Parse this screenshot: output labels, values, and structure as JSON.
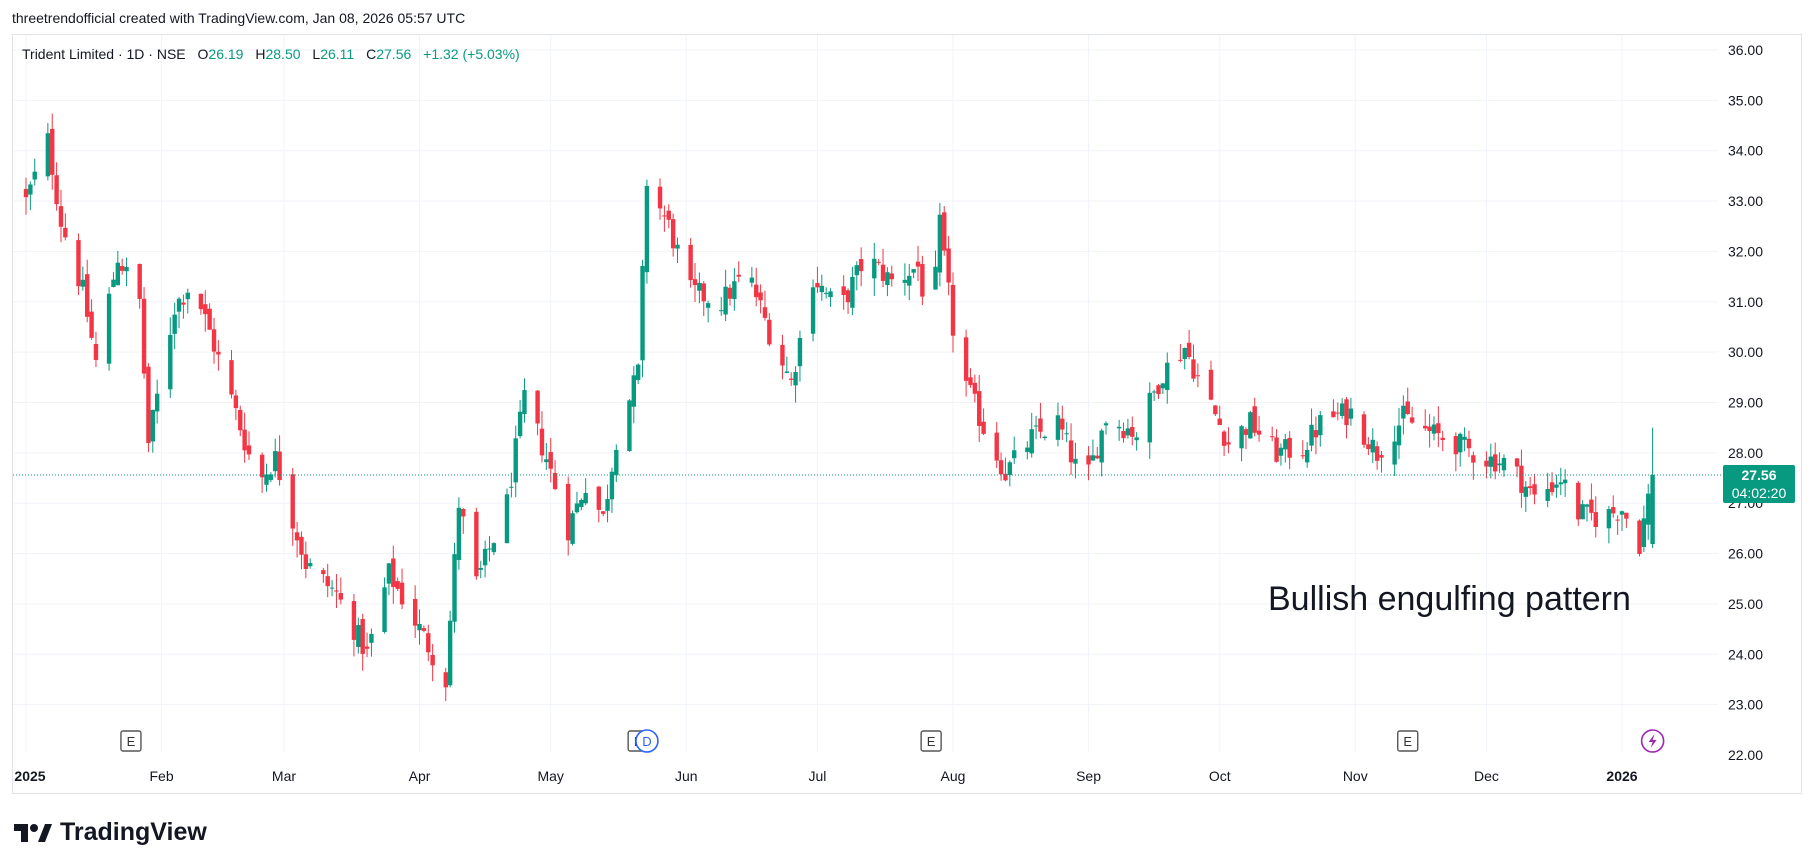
{
  "header": {
    "credit": "threetrendofficial created with TradingView.com, Jan 08, 2026 05:57 UTC"
  },
  "legend": {
    "symbol": "Trident Limited · 1D · NSE",
    "o_label": "O",
    "o_value": "26.19",
    "h_label": "H",
    "h_value": "28.50",
    "l_label": "L",
    "l_value": "26.11",
    "c_label": "C",
    "c_value": "27.56",
    "change": "+1.32 (+5.03%)"
  },
  "annotation": "Bullish engulfing pattern",
  "price_tag": {
    "price": "27.56",
    "countdown": "04:02:20"
  },
  "markers": [
    {
      "letter": "E",
      "date": "2025-01-25",
      "kind": "earnings"
    },
    {
      "letter": "E",
      "date": "2025-05-21",
      "kind": "earnings"
    },
    {
      "letter": "D",
      "date": "2025-05-23",
      "kind": "dividend"
    },
    {
      "letter": "E",
      "date": "2025-07-27",
      "kind": "earnings"
    },
    {
      "letter": "E",
      "date": "2025-11-13",
      "kind": "earnings"
    },
    {
      "letter": "",
      "date": "2026-01-08",
      "kind": "flash-icon"
    }
  ],
  "brand": "TradingView",
  "colors": {
    "up": "#089981",
    "down": "#f23645",
    "grid": "#f0f3fa",
    "text": "#131722",
    "accent": "#2962ff",
    "purple": "#9c27b0"
  },
  "chart_data": {
    "type": "candlestick",
    "title": "",
    "xlabel": "",
    "ylabel": "",
    "ylim": [
      22.0,
      36.0
    ],
    "yticks": [
      "36.00",
      "35.00",
      "34.00",
      "33.00",
      "32.00",
      "31.00",
      "30.00",
      "29.00",
      "28.00",
      "27.00",
      "26.00",
      "25.00",
      "24.00",
      "23.00",
      "22.00"
    ],
    "xticks": [
      {
        "label": "2025",
        "date": "2025-01-01",
        "bold": true
      },
      {
        "label": "Feb",
        "date": "2025-02-01"
      },
      {
        "label": "Mar",
        "date": "2025-03-01"
      },
      {
        "label": "Apr",
        "date": "2025-04-01"
      },
      {
        "label": "May",
        "date": "2025-05-01"
      },
      {
        "label": "Jun",
        "date": "2025-06-01"
      },
      {
        "label": "Jul",
        "date": "2025-07-01"
      },
      {
        "label": "Aug",
        "date": "2025-08-01"
      },
      {
        "label": "Sep",
        "date": "2025-09-01"
      },
      {
        "label": "Oct",
        "date": "2025-10-01"
      },
      {
        "label": "Nov",
        "date": "2025-11-01"
      },
      {
        "label": "Dec",
        "date": "2025-12-01"
      },
      {
        "label": "2026",
        "date": "2026-01-01",
        "bold": true
      }
    ],
    "last_price": 27.56,
    "close_path": [
      [
        "2025-01-01",
        33.0
      ],
      [
        "2025-01-06",
        34.2
      ],
      [
        "2025-01-09",
        32.6
      ],
      [
        "2025-01-14",
        31.2
      ],
      [
        "2025-01-17",
        29.8
      ],
      [
        "2025-01-22",
        31.9
      ],
      [
        "2025-01-27",
        31.0
      ],
      [
        "2025-01-29",
        28.2
      ],
      [
        "2025-02-04",
        30.9
      ],
      [
        "2025-02-08",
        31.4
      ],
      [
        "2025-02-12",
        30.4
      ],
      [
        "2025-02-18",
        28.8
      ],
      [
        "2025-02-23",
        27.4
      ],
      [
        "2025-02-27",
        27.9
      ],
      [
        "2025-03-06",
        25.8
      ],
      [
        "2025-03-13",
        25.2
      ],
      [
        "2025-03-20",
        24.0
      ],
      [
        "2025-03-25",
        25.6
      ],
      [
        "2025-04-01",
        24.5
      ],
      [
        "2025-04-04",
        24.0
      ],
      [
        "2025-04-07",
        23.5
      ],
      [
        "2025-04-10",
        27.0
      ],
      [
        "2025-04-14",
        25.4
      ],
      [
        "2025-04-21",
        27.0
      ],
      [
        "2025-04-25",
        29.1
      ],
      [
        "2025-04-30",
        27.9
      ],
      [
        "2025-05-05",
        26.5
      ],
      [
        "2025-05-09",
        27.4
      ],
      [
        "2025-05-13",
        26.7
      ],
      [
        "2025-05-16",
        28.3
      ],
      [
        "2025-05-21",
        29.6
      ],
      [
        "2025-05-23",
        33.4
      ],
      [
        "2025-05-28",
        32.5
      ],
      [
        "2025-06-02",
        31.2
      ],
      [
        "2025-06-09",
        31.0
      ],
      [
        "2025-06-15",
        31.6
      ],
      [
        "2025-06-20",
        30.4
      ],
      [
        "2025-06-25",
        29.4
      ],
      [
        "2025-06-30",
        31.5
      ],
      [
        "2025-07-06",
        30.8
      ],
      [
        "2025-07-12",
        31.9
      ],
      [
        "2025-07-18",
        31.4
      ],
      [
        "2025-07-24",
        31.7
      ],
      [
        "2025-07-27",
        30.4
      ],
      [
        "2025-07-29",
        32.5
      ],
      [
        "2025-08-02",
        29.8
      ],
      [
        "2025-08-08",
        28.5
      ],
      [
        "2025-08-13",
        27.6
      ],
      [
        "2025-08-19",
        28.3
      ],
      [
        "2025-08-25",
        28.6
      ],
      [
        "2025-08-31",
        27.3
      ],
      [
        "2025-09-05",
        28.7
      ],
      [
        "2025-09-12",
        28.4
      ],
      [
        "2025-09-18",
        29.6
      ],
      [
        "2025-09-23",
        30.1
      ],
      [
        "2025-09-27",
        29.3
      ],
      [
        "2025-10-03",
        28.2
      ],
      [
        "2025-10-08",
        28.6
      ],
      [
        "2025-10-14",
        28.0
      ],
      [
        "2025-10-20",
        28.1
      ],
      [
        "2025-10-25",
        28.7
      ],
      [
        "2025-10-31",
        28.8
      ],
      [
        "2025-11-06",
        28.0
      ],
      [
        "2025-11-12",
        28.7
      ],
      [
        "2025-11-18",
        28.4
      ],
      [
        "2025-11-24",
        28.2
      ],
      [
        "2025-11-30",
        27.9
      ],
      [
        "2025-12-06",
        27.8
      ],
      [
        "2025-12-12",
        27.1
      ],
      [
        "2025-12-18",
        27.5
      ],
      [
        "2025-12-22",
        26.8
      ],
      [
        "2025-12-27",
        26.7
      ],
      [
        "2026-01-01",
        26.9
      ],
      [
        "2026-01-05",
        26.2
      ],
      [
        "2026-01-08",
        27.56
      ]
    ]
  }
}
